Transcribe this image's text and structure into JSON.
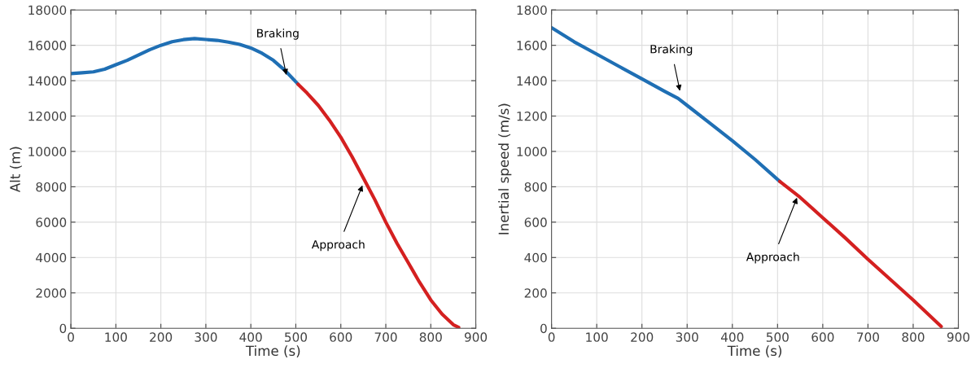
{
  "chart_data": [
    {
      "type": "line",
      "xlabel": "Time (s)",
      "ylabel": "Alt (m)",
      "xlim": [
        0,
        900
      ],
      "xticks": [
        0,
        100,
        200,
        300,
        400,
        500,
        600,
        700,
        800,
        900
      ],
      "ylim": [
        0,
        18000
      ],
      "yticks": [
        0,
        2000,
        4000,
        6000,
        8000,
        10000,
        12000,
        14000,
        16000,
        18000
      ],
      "grid": true,
      "series": [
        {
          "color": "#1f6fb4",
          "x": [
            0,
            25,
            50,
            75,
            100,
            125,
            150,
            175,
            200,
            225,
            250,
            275,
            300,
            325,
            350,
            375,
            400,
            425,
            450,
            475,
            505
          ],
          "values": [
            14400,
            14450,
            14500,
            14650,
            14900,
            15150,
            15450,
            15750,
            16000,
            16200,
            16320,
            16380,
            16330,
            16280,
            16180,
            16050,
            15850,
            15550,
            15150,
            14600,
            13800
          ]
        },
        {
          "color": "#d42020",
          "x": [
            505,
            525,
            550,
            575,
            600,
            625,
            650,
            675,
            700,
            725,
            750,
            775,
            800,
            825,
            850,
            862
          ],
          "values": [
            13800,
            13300,
            12600,
            11750,
            10800,
            9700,
            8500,
            7300,
            6000,
            4800,
            3700,
            2600,
            1600,
            800,
            200,
            50
          ]
        }
      ],
      "annotations": [
        {
          "text": "Braking",
          "x": 480,
          "y": 14200
        },
        {
          "text": "Approach",
          "x": 650,
          "y": 8200
        }
      ]
    },
    {
      "type": "line",
      "xlabel": "Time (s)",
      "ylabel": "Inertial speed (m/s)",
      "xlim": [
        0,
        900
      ],
      "xticks": [
        0,
        100,
        200,
        300,
        400,
        500,
        600,
        700,
        800,
        900
      ],
      "ylim": [
        0,
        1800
      ],
      "yticks": [
        0,
        200,
        400,
        600,
        800,
        1000,
        1200,
        1400,
        1600,
        1800
      ],
      "grid": true,
      "series": [
        {
          "color": "#1f6fb4",
          "x": [
            0,
            50,
            100,
            150,
            200,
            250,
            280,
            300,
            350,
            400,
            450,
            505
          ],
          "values": [
            1700,
            1620,
            1550,
            1480,
            1410,
            1340,
            1300,
            1260,
            1160,
            1060,
            955,
            830
          ]
        },
        {
          "color": "#d42020",
          "x": [
            505,
            550,
            600,
            650,
            700,
            750,
            800,
            862
          ],
          "values": [
            830,
            740,
            625,
            510,
            390,
            275,
            160,
            10
          ]
        }
      ],
      "annotations": [
        {
          "text": "Braking",
          "x": 285,
          "y": 1330
        },
        {
          "text": "Approach",
          "x": 545,
          "y": 750
        }
      ]
    }
  ]
}
